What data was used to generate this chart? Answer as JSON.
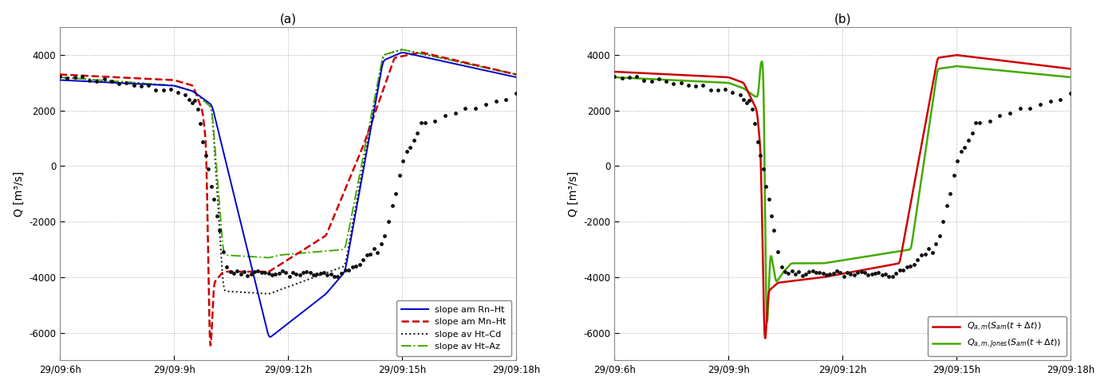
{
  "title_a": "(a)",
  "title_b": "(b)",
  "ylabel": "Q [m³/s]",
  "ylim": [
    -7000,
    5000
  ],
  "yticks": [
    -6000,
    -4000,
    -2000,
    0,
    2000,
    4000
  ],
  "xlim_hours": [
    6,
    18
  ],
  "xticks_hours": [
    6,
    9,
    12,
    15,
    18
  ],
  "xtick_labels": [
    "29/09:6h",
    "29/09:9h",
    "29/09:12h",
    "29/09:15h",
    "29/09:18h"
  ],
  "grid_color": "#aaaaaa",
  "bg_color": "#ffffff",
  "col_blue": "#0000cc",
  "col_red": "#cc0000",
  "col_black": "#111111",
  "col_green": "#44aa00",
  "lw_thin": 1.4,
  "lw_thick": 1.8,
  "measured_ms": 3.5
}
